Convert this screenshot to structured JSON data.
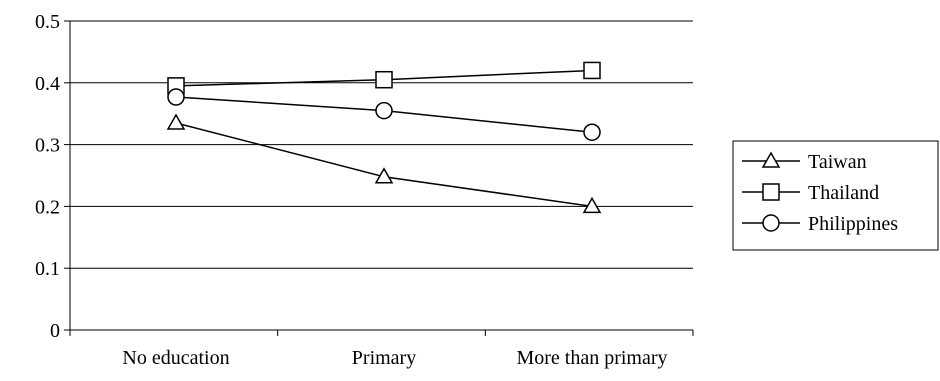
{
  "chart_data": {
    "type": "line",
    "categories": [
      "No education",
      "Primary",
      "More than primary"
    ],
    "series": [
      {
        "name": "Taiwan",
        "marker": "triangle",
        "values": [
          0.335,
          0.248,
          0.2
        ]
      },
      {
        "name": "Thailand",
        "marker": "square",
        "values": [
          0.395,
          0.405,
          0.42
        ]
      },
      {
        "name": "Philippines",
        "marker": "circle",
        "values": [
          0.377,
          0.355,
          0.32
        ]
      }
    ],
    "title": "",
    "xlabel": "",
    "ylabel": "",
    "ylim": [
      0,
      0.5
    ],
    "yticks": [
      0,
      0.1,
      0.2,
      0.3,
      0.4,
      0.5
    ],
    "ytick_labels": [
      "0",
      "0.1",
      "0.2",
      "0.3",
      "0.4",
      "0.5"
    ],
    "grid": "horizontal",
    "legend": "right",
    "colors": {
      "line": "#000000",
      "background": "#ffffff"
    }
  }
}
